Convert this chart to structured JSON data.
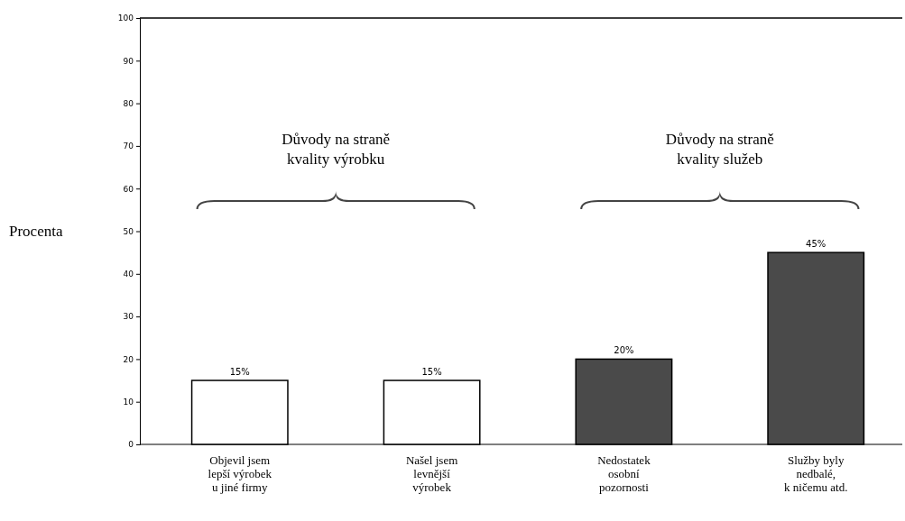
{
  "chart_data": {
    "type": "bar",
    "ylabel": "Procenta",
    "categories": [
      "Objevil jsem\nlepší výrobek\nu jiné firmy",
      "Našel jsem\nlevnější\nvýrobek",
      "Nedostatek\nosobní\npozornosti",
      "Služby byly\nnedbalé,\nk ničemu atd."
    ],
    "values": [
      15,
      15,
      20,
      45
    ],
    "colors": [
      "#ffffff",
      "#ffffff",
      "#4a4a4a",
      "#4a4a4a"
    ],
    "value_labels": [
      "15%",
      "15%",
      "20%",
      "45%"
    ],
    "ylim": [
      0,
      100
    ],
    "yticks": [
      0,
      10,
      20,
      30,
      40,
      50,
      60,
      70,
      80,
      90,
      100
    ],
    "annotations": [
      "Důvody na straně\nkvality výrobku",
      "Důvody na straně\nkvality služeb"
    ]
  }
}
